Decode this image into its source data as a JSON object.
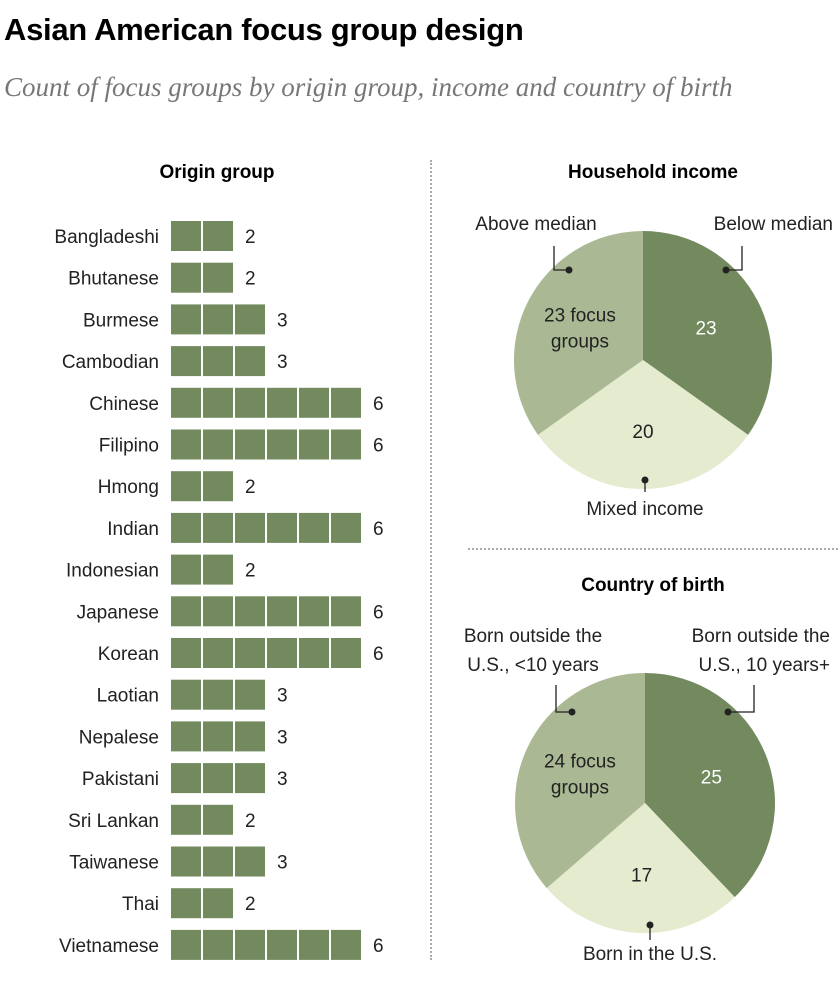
{
  "title": "Asian American focus group design",
  "subtitle": "Count of focus groups by origin group, income and country of birth",
  "chart_data": [
    {
      "type": "bar",
      "title": "Origin group",
      "categories": [
        "Bangladeshi",
        "Bhutanese",
        "Burmese",
        "Cambodian",
        "Chinese",
        "Filipino",
        "Hmong",
        "Indian",
        "Indonesian",
        "Japanese",
        "Korean",
        "Laotian",
        "Nepalese",
        "Pakistani",
        "Sri Lankan",
        "Taiwanese",
        "Thai",
        "Vietnamese"
      ],
      "values": [
        2,
        2,
        3,
        3,
        6,
        6,
        2,
        6,
        2,
        6,
        6,
        3,
        3,
        3,
        2,
        3,
        2,
        6
      ],
      "unit": "focus groups (one square each)",
      "color": "#738a5e"
    },
    {
      "type": "pie",
      "title": "Household income",
      "slices": [
        {
          "label": "Below median",
          "value": 23,
          "value_text": "23",
          "color": "#738a5e",
          "text_color": "#ffffff"
        },
        {
          "label": "Mixed income",
          "value": 20,
          "value_text": "20",
          "color": "#e4ebcf",
          "text_color": "#222222"
        },
        {
          "label": "Above median",
          "value": 23,
          "value_text": "23 focus groups",
          "value_lines": [
            "23 focus",
            "groups"
          ],
          "color": "#aab994",
          "text_color": "#222222"
        }
      ]
    },
    {
      "type": "pie",
      "title": "Country of birth",
      "slices": [
        {
          "label": "Born outside the U.S., 10 years+",
          "label_lines": [
            "Born outside the",
            "U.S., 10 years+"
          ],
          "value": 25,
          "value_text": "25",
          "color": "#738a5e",
          "text_color": "#ffffff"
        },
        {
          "label": "Born in the U.S.",
          "value": 17,
          "value_text": "17",
          "color": "#e4ebcf",
          "text_color": "#222222"
        },
        {
          "label": "Born outside the U.S., <10 years",
          "label_lines": [
            "Born outside the",
            "U.S., <10 years"
          ],
          "value": 24,
          "value_text": "24 focus groups",
          "value_lines": [
            "24 focus",
            "groups"
          ],
          "color": "#aab994",
          "text_color": "#222222"
        }
      ]
    }
  ]
}
